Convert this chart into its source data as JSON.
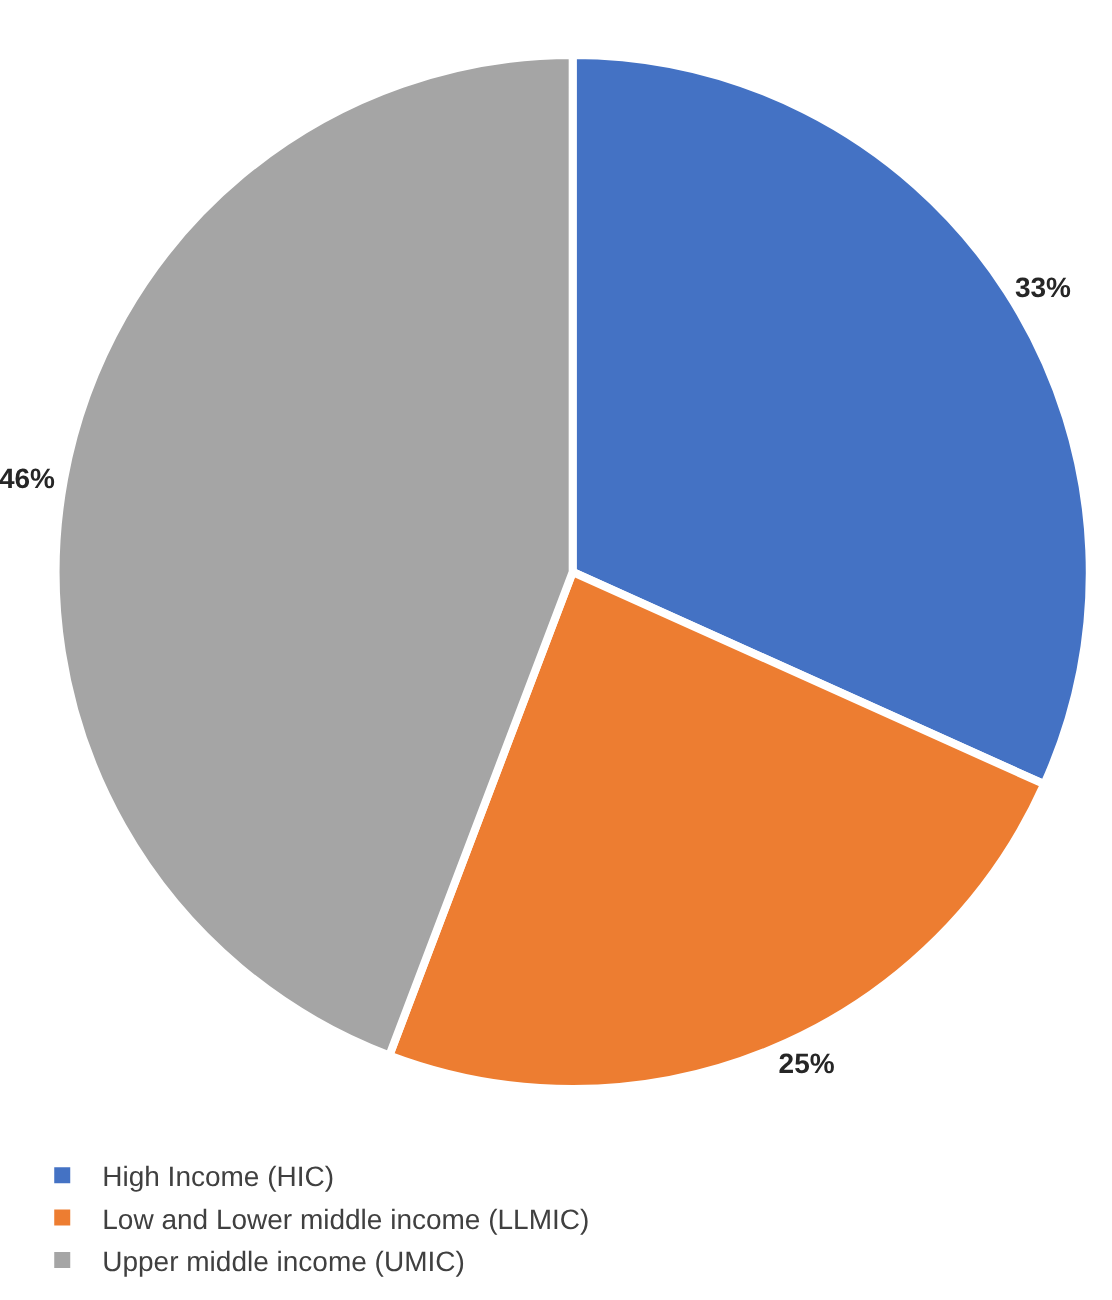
{
  "chart_data": {
    "type": "pie",
    "categories": [
      "High Income (HIC)",
      "Low and Lower middle income (LLMIC)",
      "Upper middle income (UMIC)"
    ],
    "values": [
      33,
      25,
      46
    ],
    "colors": [
      "#4472c4",
      "#ed7d31",
      "#a5a5a5"
    ],
    "value_labels": [
      "33%",
      "25%",
      "46%"
    ],
    "legend": "bottom left"
  }
}
